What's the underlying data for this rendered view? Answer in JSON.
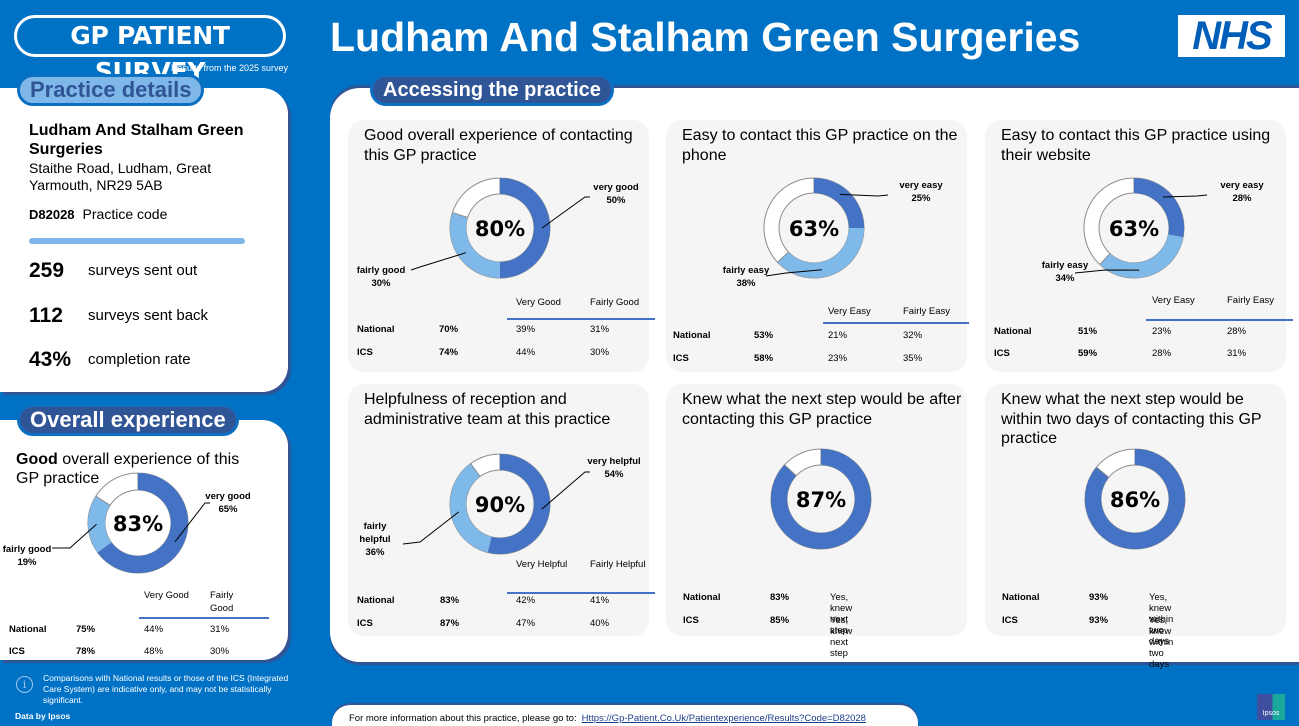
{
  "header": {
    "survey_logo": "GP PATIENT SURVEY",
    "survey_subtitle": "Results from the 2025 survey",
    "title": "Ludham And Stalham Green Surgeries",
    "nhs_logo": "NHS"
  },
  "practice": {
    "section_label": "Practice details",
    "name": "Ludham And Stalham Green Surgeries",
    "address": "Staithe Road, Ludham, Great Yarmouth, NR29 5AB",
    "code": "D82028",
    "code_label": "Practice code",
    "stats": [
      {
        "value": "259",
        "label": "surveys sent out"
      },
      {
        "value": "112",
        "label": "surveys sent back"
      },
      {
        "value": "43%",
        "label": "completion rate"
      }
    ]
  },
  "overall": {
    "section_label": "Overall experience",
    "title_bold": "Good",
    "title_rest": " overall experience of this GP practice"
  },
  "disclaimer": "Comparisons with National results or those of the ICS (Integrated Care System) are indicative only, and may not be statistically significant.",
  "data_by": "Data by Ipsos",
  "accessing": {
    "section_label": "Accessing the practice"
  },
  "footer": {
    "text": "For more information about this practice, please go to:",
    "link": "Https://Gp-Patient.Co.Uk/Patientexperience/Results?Code=D82028"
  },
  "ipsos_logo": "Ipsos",
  "colors": {
    "background": "#0072c6",
    "primary_segment": "#4472c4",
    "secondary_segment": "#7fb9e9",
    "pill_dark": "#2f5597",
    "pill_light": "#7fb8e8",
    "card_bg": "#f5f5f5"
  },
  "chart_data": [
    {
      "id": "overall",
      "type": "pie",
      "title": "Good overall experience of this GP practice",
      "total": "83%",
      "segments": [
        {
          "label": "very good",
          "value": 65
        },
        {
          "label": "fairly good",
          "value": 19
        }
      ],
      "columns": [
        "Very Good",
        "Fairly Good"
      ],
      "rows": [
        {
          "name": "National",
          "total": "75%",
          "values": [
            "44%",
            "31%"
          ]
        },
        {
          "name": "ICS",
          "total": "78%",
          "values": [
            "48%",
            "30%"
          ]
        }
      ]
    },
    {
      "id": "contact-overall",
      "type": "pie",
      "title": "Good overall experience of contacting this GP practice",
      "total": "80%",
      "segments": [
        {
          "label": "very good",
          "value": 50
        },
        {
          "label": "fairly good",
          "value": 30
        }
      ],
      "columns": [
        "Very Good",
        "Fairly Good"
      ],
      "rows": [
        {
          "name": "National",
          "total": "70%",
          "values": [
            "39%",
            "31%"
          ]
        },
        {
          "name": "ICS",
          "total": "74%",
          "values": [
            "44%",
            "30%"
          ]
        }
      ]
    },
    {
      "id": "phone",
      "type": "pie",
      "title": "Easy to contact this GP practice on the phone",
      "total": "63%",
      "segments": [
        {
          "label": "very easy",
          "value": 25
        },
        {
          "label": "fairly easy",
          "value": 38
        }
      ],
      "columns": [
        "Very Easy",
        "Fairly Easy"
      ],
      "rows": [
        {
          "name": "National",
          "total": "53%",
          "values": [
            "21%",
            "32%"
          ]
        },
        {
          "name": "ICS",
          "total": "58%",
          "values": [
            "23%",
            "35%"
          ]
        }
      ]
    },
    {
      "id": "website",
      "type": "pie",
      "title": "Easy to contact this GP practice using their website",
      "total": "63%",
      "segments": [
        {
          "label": "very easy",
          "value": 28
        },
        {
          "label": "fairly easy",
          "value": 34
        }
      ],
      "columns": [
        "Very Easy",
        "Fairly Easy"
      ],
      "rows": [
        {
          "name": "National",
          "total": "51%",
          "values": [
            "23%",
            "28%"
          ]
        },
        {
          "name": "ICS",
          "total": "59%",
          "values": [
            "28%",
            "31%"
          ]
        }
      ]
    },
    {
      "id": "reception",
      "type": "pie",
      "title": "Helpfulness of reception and administrative team at this practice",
      "total": "90%",
      "segments": [
        {
          "label": "very helpful",
          "value": 54
        },
        {
          "label": "fairly helpful",
          "value": 36
        }
      ],
      "columns": [
        "Very Helpful",
        "Fairly Helpful"
      ],
      "rows": [
        {
          "name": "National",
          "total": "83%",
          "values": [
            "42%",
            "41%"
          ]
        },
        {
          "name": "ICS",
          "total": "87%",
          "values": [
            "47%",
            "40%"
          ]
        }
      ]
    },
    {
      "id": "next-step",
      "type": "pie",
      "title": "Knew what the next step would be after contacting this GP practice",
      "total": "87%",
      "segments": [
        {
          "label": "yes",
          "value": 87
        }
      ],
      "rows": [
        {
          "name": "National",
          "total": "83%",
          "text": "Yes, knew next step"
        },
        {
          "name": "ICS",
          "total": "85%",
          "text": "Yes, knew next step"
        }
      ]
    },
    {
      "id": "two-days",
      "type": "pie",
      "title": "Knew what the next step would be within two days of contacting this GP practice",
      "total": "86%",
      "segments": [
        {
          "label": "yes",
          "value": 86
        }
      ],
      "rows": [
        {
          "name": "National",
          "total": "93%",
          "text": "Yes, knew within two days"
        },
        {
          "name": "ICS",
          "total": "93%",
          "text": "Yes, knew within two days"
        }
      ]
    }
  ]
}
